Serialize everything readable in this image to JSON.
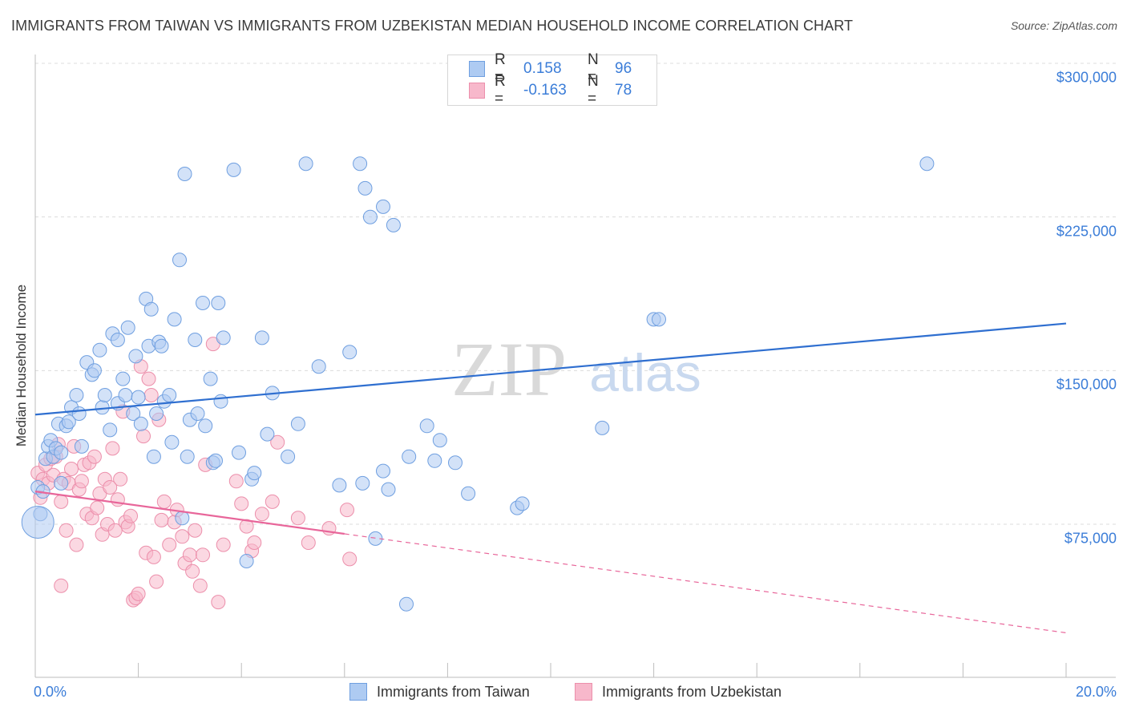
{
  "title": "IMMIGRANTS FROM TAIWAN VS IMMIGRANTS FROM UZBEKISTAN MEDIAN HOUSEHOLD INCOME CORRELATION CHART",
  "source": "Source: ZipAtlas.com",
  "watermark": {
    "zip": "ZIP",
    "atlas": "atlas"
  },
  "legend": {
    "rows": [
      {
        "r_label": "R =",
        "r_value": "0.158",
        "n_label": "N =",
        "n_value": "96"
      },
      {
        "r_label": "R =",
        "r_value": "-0.163",
        "n_label": "N =",
        "n_value": "78"
      }
    ]
  },
  "bottom_legend": {
    "taiwan": "Immigrants from Taiwan",
    "uzbekistan": "Immigrants from Uzbekistan"
  },
  "colors": {
    "taiwan_fill": "#aecbf2",
    "taiwan_stroke": "#6f9fe0",
    "taiwan_line": "#2f6fd0",
    "uzbek_fill": "#f7b8cb",
    "uzbek_stroke": "#ec8fab",
    "uzbek_line": "#e8669a",
    "tick_text": "#3b7dd8",
    "grid": "#dcdcdc"
  },
  "chart_data": {
    "type": "scatter",
    "title": "IMMIGRANTS FROM TAIWAN VS IMMIGRANTS FROM UZBEKISTAN MEDIAN HOUSEHOLD INCOME CORRELATION CHART",
    "xlabel": "",
    "ylabel": "Median Household Income",
    "xlim": [
      0,
      20
    ],
    "ylim": [
      0,
      310000
    ],
    "x_tick_labels": [
      "0.0%",
      "20.0%"
    ],
    "y_ticks": [
      75000,
      150000,
      225000,
      300000
    ],
    "y_tick_labels": [
      "$75,000",
      "$150,000",
      "$225,000",
      "$300,000"
    ],
    "grid": true,
    "legend_position": "top-center",
    "series": [
      {
        "name": "Immigrants from Taiwan",
        "R": 0.158,
        "N": 96,
        "trend": {
          "x": [
            0,
            20
          ],
          "y": [
            128500,
            173000
          ],
          "dashed_from": null
        },
        "points": [
          [
            0.05,
            93000
          ],
          [
            0.1,
            80000
          ],
          [
            0.15,
            91000
          ],
          [
            0.2,
            107000
          ],
          [
            0.25,
            113000
          ],
          [
            0.3,
            116000
          ],
          [
            0.35,
            108000
          ],
          [
            0.4,
            112000
          ],
          [
            0.45,
            124000
          ],
          [
            0.5,
            110000
          ],
          [
            0.5,
            95000
          ],
          [
            0.6,
            123000
          ],
          [
            0.65,
            125000
          ],
          [
            0.7,
            132000
          ],
          [
            0.8,
            138000
          ],
          [
            0.85,
            129000
          ],
          [
            0.9,
            113000
          ],
          [
            1.0,
            154000
          ],
          [
            1.1,
            148000
          ],
          [
            1.15,
            150000
          ],
          [
            1.25,
            160000
          ],
          [
            1.3,
            132000
          ],
          [
            1.35,
            138000
          ],
          [
            1.45,
            121000
          ],
          [
            1.5,
            168000
          ],
          [
            1.6,
            134000
          ],
          [
            1.6,
            165000
          ],
          [
            1.7,
            146000
          ],
          [
            1.75,
            138000
          ],
          [
            1.8,
            171000
          ],
          [
            1.9,
            129000
          ],
          [
            1.95,
            157000
          ],
          [
            2.0,
            137000
          ],
          [
            2.05,
            124000
          ],
          [
            2.15,
            185000
          ],
          [
            2.2,
            162000
          ],
          [
            2.25,
            180000
          ],
          [
            2.3,
            108000
          ],
          [
            2.35,
            129000
          ],
          [
            2.4,
            164000
          ],
          [
            2.45,
            162000
          ],
          [
            2.5,
            135000
          ],
          [
            2.6,
            138000
          ],
          [
            2.65,
            115000
          ],
          [
            2.7,
            175000
          ],
          [
            2.8,
            204000
          ],
          [
            2.85,
            78000
          ],
          [
            2.9,
            246000
          ],
          [
            2.95,
            108000
          ],
          [
            3.0,
            126000
          ],
          [
            3.1,
            165000
          ],
          [
            3.15,
            129000
          ],
          [
            3.25,
            183000
          ],
          [
            3.3,
            123000
          ],
          [
            3.4,
            146000
          ],
          [
            3.45,
            105000
          ],
          [
            3.5,
            106000
          ],
          [
            3.55,
            183000
          ],
          [
            3.6,
            135000
          ],
          [
            3.65,
            166000
          ],
          [
            3.85,
            248000
          ],
          [
            3.95,
            110000
          ],
          [
            4.1,
            57000
          ],
          [
            4.2,
            97000
          ],
          [
            4.25,
            100000
          ],
          [
            4.4,
            166000
          ],
          [
            4.5,
            119000
          ],
          [
            4.6,
            139000
          ],
          [
            4.9,
            108000
          ],
          [
            5.1,
            124000
          ],
          [
            5.25,
            251000
          ],
          [
            5.5,
            152000
          ],
          [
            5.9,
            94000
          ],
          [
            6.1,
            159000
          ],
          [
            6.3,
            251000
          ],
          [
            6.35,
            95000
          ],
          [
            6.4,
            239000
          ],
          [
            6.5,
            225000
          ],
          [
            6.6,
            68000
          ],
          [
            6.75,
            230000
          ],
          [
            6.75,
            101000
          ],
          [
            6.85,
            92000
          ],
          [
            6.95,
            221000
          ],
          [
            7.25,
            108000
          ],
          [
            7.2,
            36000
          ],
          [
            7.6,
            123000
          ],
          [
            7.75,
            106000
          ],
          [
            7.85,
            116000
          ],
          [
            8.15,
            105000
          ],
          [
            8.4,
            90000
          ],
          [
            9.35,
            83000
          ],
          [
            9.45,
            85000
          ],
          [
            11.0,
            122000
          ],
          [
            12.0,
            175000
          ],
          [
            12.1,
            175000
          ],
          [
            17.3,
            251000
          ]
        ]
      },
      {
        "name": "Immigrants from Uzbekistan",
        "R": -0.163,
        "N": 78,
        "trend": {
          "x": [
            0,
            20
          ],
          "y": [
            91000,
            22000
          ],
          "solid_until_x": 6.0
        },
        "points": [
          [
            0.05,
            100000
          ],
          [
            0.1,
            88000
          ],
          [
            0.15,
            97000
          ],
          [
            0.2,
            104000
          ],
          [
            0.25,
            95000
          ],
          [
            0.3,
            107000
          ],
          [
            0.35,
            99000
          ],
          [
            0.4,
            108000
          ],
          [
            0.45,
            114000
          ],
          [
            0.5,
            86000
          ],
          [
            0.55,
            97000
          ],
          [
            0.6,
            72000
          ],
          [
            0.65,
            95000
          ],
          [
            0.7,
            102000
          ],
          [
            0.75,
            113000
          ],
          [
            0.8,
            65000
          ],
          [
            0.85,
            92000
          ],
          [
            0.9,
            96000
          ],
          [
            0.95,
            104000
          ],
          [
            1.0,
            80000
          ],
          [
            1.05,
            105000
          ],
          [
            1.1,
            78000
          ],
          [
            1.15,
            108000
          ],
          [
            1.2,
            83000
          ],
          [
            1.25,
            90000
          ],
          [
            1.3,
            70000
          ],
          [
            1.35,
            97000
          ],
          [
            1.4,
            75000
          ],
          [
            1.45,
            93000
          ],
          [
            1.5,
            112000
          ],
          [
            1.55,
            72000
          ],
          [
            1.6,
            87000
          ],
          [
            1.65,
            97000
          ],
          [
            1.7,
            130000
          ],
          [
            1.75,
            76000
          ],
          [
            1.8,
            74000
          ],
          [
            1.85,
            79000
          ],
          [
            1.9,
            38000
          ],
          [
            1.95,
            39000
          ],
          [
            2.0,
            41000
          ],
          [
            2.05,
            152000
          ],
          [
            2.1,
            118000
          ],
          [
            2.15,
            61000
          ],
          [
            2.2,
            146000
          ],
          [
            2.25,
            138000
          ],
          [
            2.3,
            59000
          ],
          [
            2.35,
            47000
          ],
          [
            2.4,
            126000
          ],
          [
            2.45,
            77000
          ],
          [
            2.5,
            86000
          ],
          [
            2.6,
            65000
          ],
          [
            2.7,
            76000
          ],
          [
            2.75,
            82000
          ],
          [
            2.85,
            69000
          ],
          [
            2.9,
            56000
          ],
          [
            3.0,
            60000
          ],
          [
            3.05,
            52000
          ],
          [
            3.1,
            72000
          ],
          [
            3.2,
            45000
          ],
          [
            3.25,
            60000
          ],
          [
            3.3,
            104000
          ],
          [
            3.45,
            163000
          ],
          [
            3.55,
            37000
          ],
          [
            3.65,
            65000
          ],
          [
            3.9,
            96000
          ],
          [
            4.0,
            85000
          ],
          [
            4.1,
            74000
          ],
          [
            4.2,
            62000
          ],
          [
            4.25,
            66000
          ],
          [
            4.4,
            80000
          ],
          [
            4.6,
            86000
          ],
          [
            4.7,
            115000
          ],
          [
            5.1,
            78000
          ],
          [
            5.3,
            66000
          ],
          [
            5.7,
            73000
          ],
          [
            6.05,
            82000
          ],
          [
            6.1,
            58000
          ],
          [
            0.5,
            45000
          ]
        ]
      }
    ]
  }
}
